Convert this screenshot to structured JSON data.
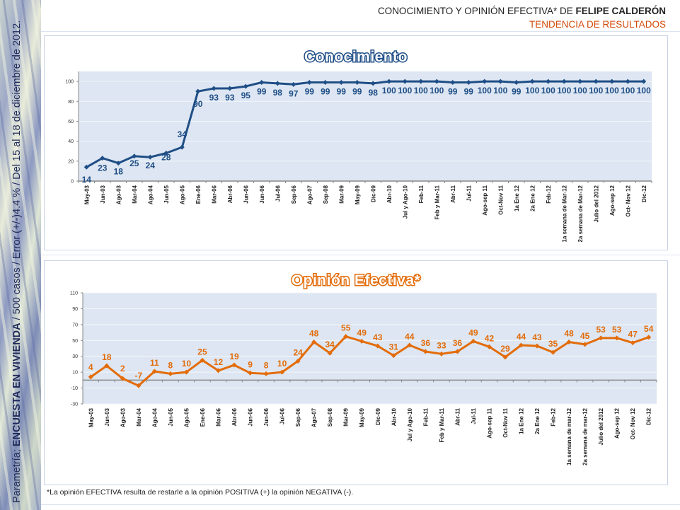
{
  "header": {
    "title_prefix": "CONOCIMIENTO Y OPINIÓN EFECTIVA* DE ",
    "title_bold": "FELIPE CALDERÓN",
    "subtitle": "TENDENCIA DE RESULTADOS"
  },
  "side_note": {
    "prefix": "Parametría; ",
    "bold": "ENCUESTA EN VIVIENDA",
    "suffix": " / 500 casos / Error (+/-)4.4 % / Del 15  al 18  de diciembre de 2012."
  },
  "footnote": "*La opinión EFECTIVA resulta de restarle a la opinión POSITIVA (+) la opinión NEGATIVA (-).",
  "colors": {
    "conocimiento": "#1f4e86",
    "opinion": "#e36c0a",
    "plot_bg": "#dde6f2",
    "header_sub": "#d24a0a"
  },
  "chart_data": [
    {
      "type": "line",
      "title": "Conocimiento",
      "xlabel": "",
      "ylabel": "",
      "ylim": [
        0,
        110
      ],
      "yticks": [
        0,
        20,
        40,
        60,
        80,
        100
      ],
      "grid": true,
      "categories": [
        "May-03",
        "Jun-03",
        "Ago-03",
        "Mar-04",
        "Ago-04",
        "Jun-05",
        "Ago-05",
        "Ene-06",
        "Mar-06",
        "Abr-06",
        "Jun-06",
        "Jun-06",
        "Jul-06",
        "Sep-06",
        "Ago-07",
        "Sep-08",
        "Mar-09",
        "May-09",
        "Dic-09",
        "Abr-10",
        "Jul y Ago-10",
        "Feb-11",
        "Feb y Mar-11",
        "Abr-11",
        "Jul-11",
        "Ago-sep 11",
        "Oct-Nov 11",
        "1a Ene 12",
        "2a Ene 12",
        "Feb-12",
        "1a semana de Mar-12",
        "2a semana de Mar-12",
        "Julio del 2012",
        "Ago-sep 12",
        "Oct- Nov 12",
        "Dic-12"
      ],
      "values": [
        14,
        23,
        18,
        25,
        24,
        28,
        34,
        90,
        93,
        93,
        95,
        99,
        98,
        97,
        99,
        99,
        99,
        99,
        98,
        100,
        100,
        100,
        100,
        99,
        99,
        100,
        100,
        99,
        100,
        100,
        100,
        100,
        100,
        100,
        100,
        100
      ]
    },
    {
      "type": "line",
      "title": "Opinión Efectiva*",
      "xlabel": "",
      "ylabel": "",
      "ylim": [
        -30,
        110
      ],
      "yticks": [
        -30,
        -10,
        10,
        30,
        50,
        70,
        90,
        110
      ],
      "grid": true,
      "categories": [
        "May-03",
        "Jun-03",
        "Ago-03",
        "Mar-04",
        "Ago-04",
        "Jun-05",
        "Ago-05",
        "Ene-06",
        "Mar-06",
        "Abr-06",
        "Jun-06",
        "Jun-06",
        "Jul-06",
        "Sep-06",
        "Ago-07",
        "Sep-08",
        "Mar-09",
        "May-09",
        "Dic-09",
        "Abr-10",
        "Jul y Ago-10",
        "Feb-11",
        "Feb y Mar-11",
        "Abr-11",
        "Jul-11",
        "Ago-sep 11",
        "Oct-Nov 11",
        "1a Ene 12",
        "2a Ene 12",
        "Feb-12",
        "1a semana de mar-12",
        "2a semana de mar-12",
        "Julio del 2012",
        "Ago-sep 12",
        "Oct- Nov 12",
        "Dic-12"
      ],
      "values": [
        4,
        18,
        2,
        -7,
        11,
        8,
        10,
        25,
        12,
        19,
        9,
        8,
        10,
        24,
        48,
        34,
        55,
        49,
        43,
        31,
        44,
        36,
        33,
        36,
        49,
        42,
        29,
        44,
        43,
        35,
        48,
        45,
        53,
        53,
        47,
        54
      ]
    }
  ]
}
